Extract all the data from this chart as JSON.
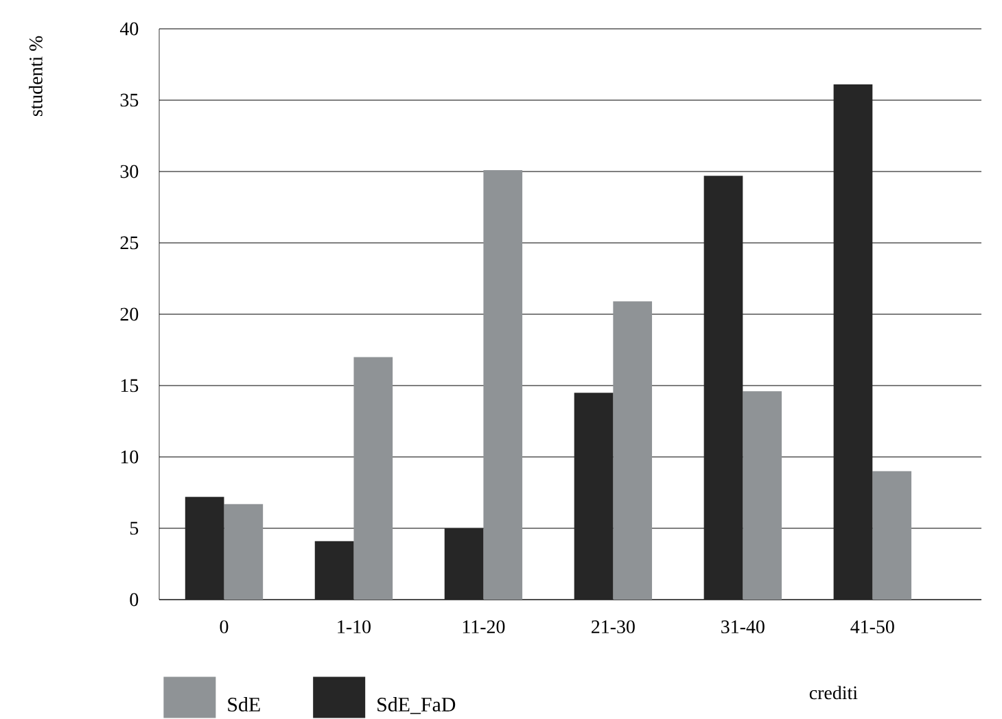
{
  "chart_data": {
    "type": "bar",
    "ylabel": "studenti %",
    "xlabel": "crediti",
    "categories": [
      "0",
      "1-10",
      "11-20",
      "21-30",
      "31-40",
      "41-50"
    ],
    "series": [
      {
        "name": "SdE",
        "color": "#8f9396",
        "values": [
          6.7,
          17.0,
          30.1,
          20.9,
          14.6,
          9.0
        ]
      },
      {
        "name": "SdE_FaD",
        "color": "#262626",
        "values": [
          7.2,
          4.1,
          5.0,
          14.5,
          29.7,
          36.1
        ]
      }
    ],
    "ylim": [
      0,
      40
    ],
    "yticks": [
      0,
      5,
      10,
      15,
      20,
      25,
      30,
      35,
      40
    ],
    "grid": "y",
    "legend": "bottom left"
  }
}
